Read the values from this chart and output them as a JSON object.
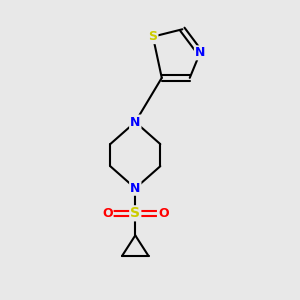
{
  "background_color": "#e8e8e8",
  "bond_color": "#000000",
  "atom_colors": {
    "N": "#0000ff",
    "S_thiazole": "#cccc00",
    "S_sulfonyl": "#cccc00",
    "O": "#ff0000",
    "C": "#000000"
  },
  "figsize": [
    3.0,
    3.0
  ],
  "dpi": 100,
  "line_width": 1.5
}
